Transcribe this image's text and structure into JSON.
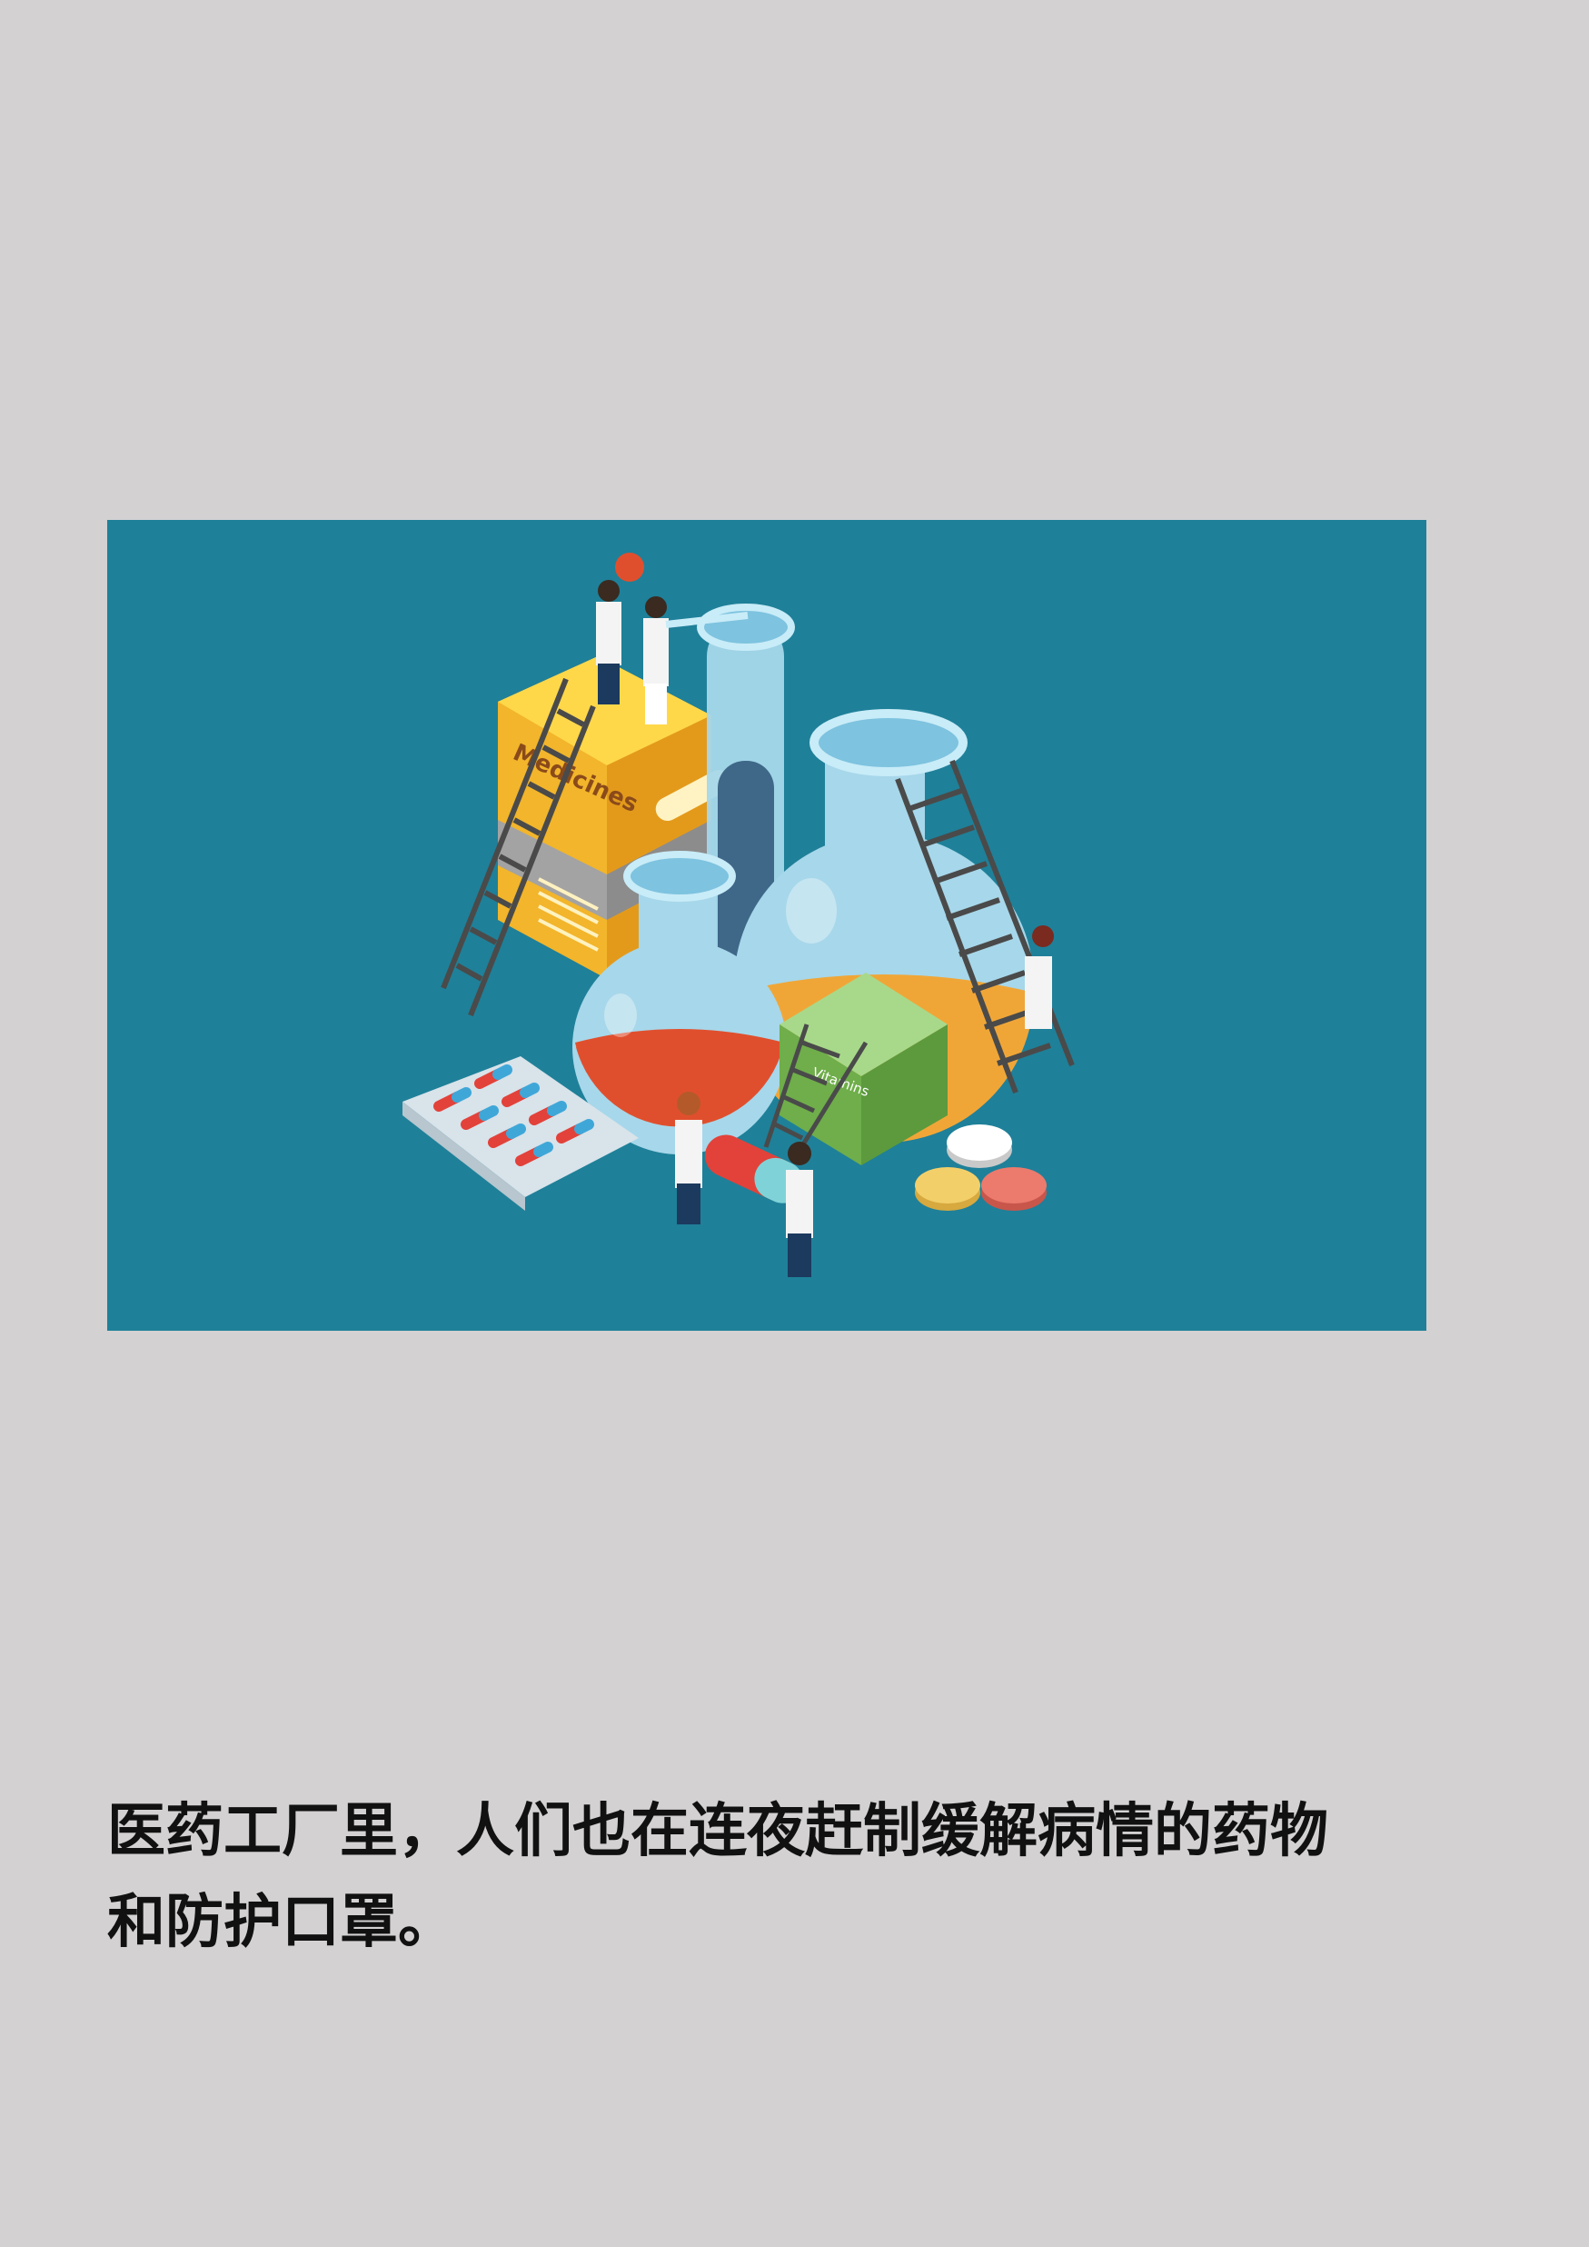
{
  "illustration": {
    "background_color": "#1f8099",
    "box_label": "Medicines",
    "green_box_label": "Vitamins"
  },
  "caption": {
    "line1": "医药工厂里，人们也在连夜赶制缓解病情的药物",
    "line2": "和防护口罩。"
  }
}
